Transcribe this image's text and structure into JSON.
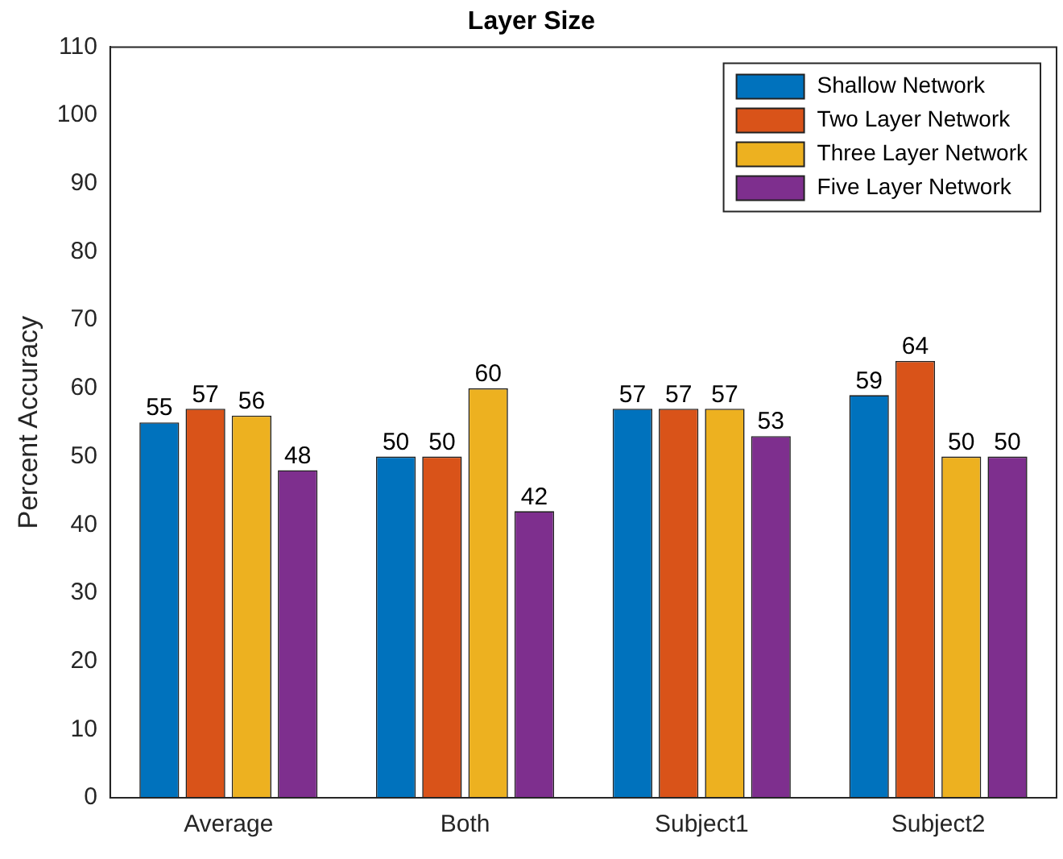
{
  "chart_data": {
    "type": "bar",
    "title": "Layer Size",
    "ylabel": "Percent Accuracy",
    "categories": [
      "Average",
      "Both",
      "Subject1",
      "Subject2"
    ],
    "series": [
      {
        "name": "Shallow Network",
        "color": "#0072bd",
        "values": [
          55,
          50,
          57,
          59
        ]
      },
      {
        "name": "Two Layer Network",
        "color": "#d95319",
        "values": [
          57,
          50,
          57,
          64
        ]
      },
      {
        "name": "Three Layer Network",
        "color": "#edb120",
        "values": [
          56,
          60,
          57,
          50
        ]
      },
      {
        "name": "Five Layer Network",
        "color": "#7e2f8e",
        "values": [
          48,
          42,
          53,
          50
        ]
      }
    ],
    "ylim": [
      0,
      110
    ],
    "yticks": [
      0,
      10,
      20,
      30,
      40,
      50,
      60,
      70,
      80,
      90,
      100,
      110
    ],
    "data_labels": true,
    "legend": "top right",
    "grid": false
  }
}
